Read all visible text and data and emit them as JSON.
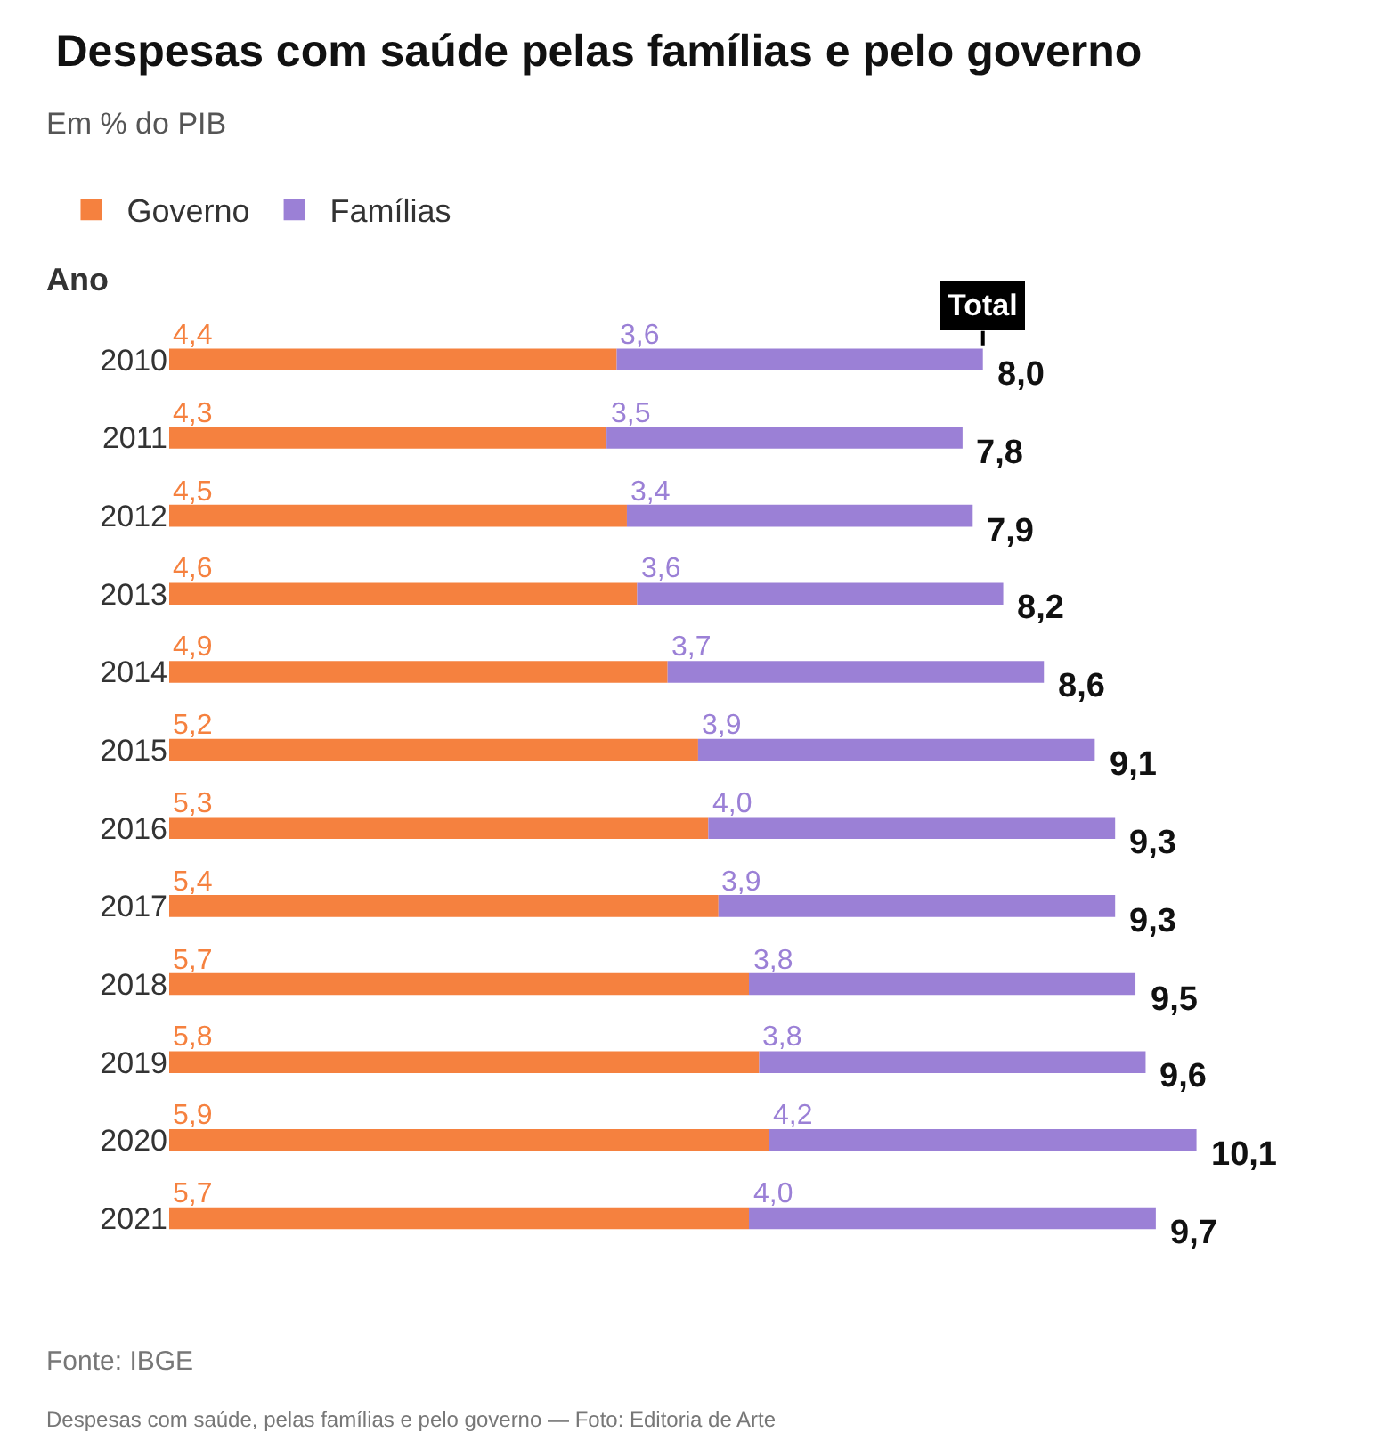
{
  "chart_data": {
    "type": "bar",
    "orientation": "horizontal",
    "stacked": true,
    "title": "Despesas com saúde pelas famílias e pelo governo",
    "subtitle": "Em % do PIB",
    "ylabel": "Ano",
    "categories": [
      "2010",
      "2011",
      "2012",
      "2013",
      "2014",
      "2015",
      "2016",
      "2017",
      "2018",
      "2019",
      "2020",
      "2021"
    ],
    "series": [
      {
        "name": "Governo",
        "color": "#f5813f",
        "values": [
          4.4,
          4.3,
          4.5,
          4.6,
          4.9,
          5.2,
          5.3,
          5.4,
          5.7,
          5.8,
          5.9,
          5.7
        ],
        "value_labels": [
          "4,4",
          "4,3",
          "4,5",
          "4,6",
          "4,9",
          "5,2",
          "5,3",
          "5,4",
          "5,7",
          "5,8",
          "5,9",
          "5,7"
        ]
      },
      {
        "name": "Famílias",
        "color": "#9b80d6",
        "values": [
          3.6,
          3.5,
          3.4,
          3.6,
          3.7,
          3.9,
          4.0,
          3.9,
          3.8,
          3.8,
          4.2,
          4.0
        ],
        "value_labels": [
          "3,6",
          "3,5",
          "3,4",
          "3,6",
          "3,7",
          "3,9",
          "4,0",
          "3,9",
          "3,8",
          "3,8",
          "4,2",
          "4,0"
        ]
      }
    ],
    "totals": [
      "8,0",
      "7,8",
      "7,9",
      "8,2",
      "8,6",
      "9,1",
      "9,3",
      "9,3",
      "9,5",
      "9,6",
      "10,1",
      "9,7"
    ],
    "annotations": [
      {
        "text": "Total",
        "x": 8.0,
        "y": "2010"
      },
      "Fonte: IBGE",
      "Despesas com saúde, pelas famílias e pelo governo — Foto: Editoria de Arte"
    ],
    "legend": "top left",
    "tick_labels": "y"
  }
}
